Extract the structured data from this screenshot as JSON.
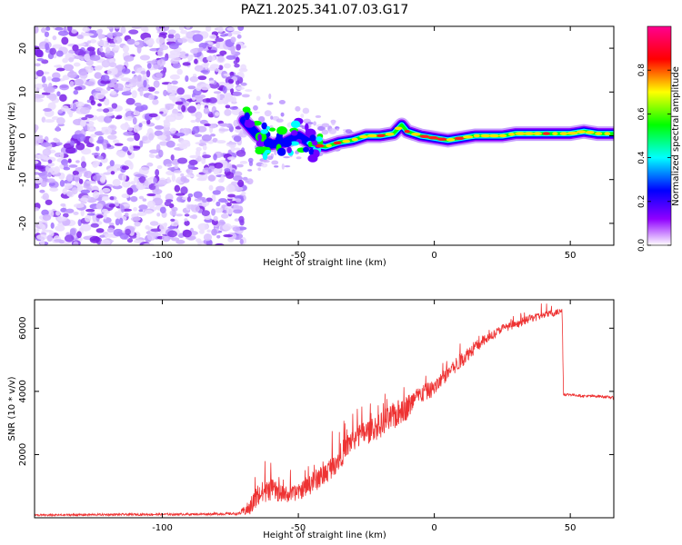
{
  "title": "PAZ1.2025.341.07.03.G17",
  "chart_data": [
    {
      "type": "heatmap",
      "xlabel": "Height of straight line (km)",
      "ylabel": "Frequency (Hz)",
      "xlim": [
        -147,
        66
      ],
      "ylim": [
        -25,
        25
      ],
      "xticks": [
        -100,
        -50,
        0,
        50
      ],
      "yticks": [
        -20,
        -10,
        0,
        10,
        20
      ],
      "noise_region_x": [
        -147,
        -70
      ],
      "colorbar": {
        "label": "Normalized spectral amplitude",
        "range": [
          0,
          1
        ],
        "ticks": [
          0.0,
          0.2,
          0.4,
          0.6,
          0.8
        ],
        "colors": [
          "#ffffff",
          "#9000ff",
          "#0000ff",
          "#00ffff",
          "#00ff00",
          "#ffff00",
          "#ff0000",
          "#ff0090"
        ]
      },
      "ridge": {
        "x": [
          -70,
          -65,
          -60,
          -55,
          -50,
          -45,
          -40,
          -35,
          -30,
          -25,
          -20,
          -15,
          -12,
          -10,
          -5,
          0,
          5,
          10,
          15,
          20,
          25,
          30,
          35,
          40,
          45,
          50,
          55,
          60,
          66
        ],
        "y": [
          3.5,
          0,
          -2,
          -1.5,
          0,
          -2,
          -2.5,
          -1.5,
          -1,
          0,
          0,
          0.5,
          2.5,
          1,
          0,
          -0.5,
          -1,
          -0.5,
          0,
          0,
          0,
          0.5,
          0.5,
          0.5,
          0.5,
          0.5,
          1,
          0.5,
          0.5
        ]
      }
    },
    {
      "type": "line",
      "xlabel": "Height of straight line (km)",
      "ylabel": "SNR (10 * v/v)",
      "xlim": [
        -147,
        66
      ],
      "ylim": [
        0,
        6900
      ],
      "xticks": [
        -100,
        -50,
        0,
        50
      ],
      "yticks": [
        2000,
        4000,
        6000
      ],
      "series": [
        {
          "name": "SNR",
          "color": "#ee3333",
          "x": [
            -147,
            -120,
            -90,
            -72,
            -68,
            -65,
            -60,
            -55,
            -50,
            -45,
            -40,
            -35,
            -30,
            -25,
            -20,
            -15,
            -10,
            -5,
            0,
            5,
            10,
            15,
            20,
            25,
            30,
            35,
            40,
            45,
            47,
            47.5,
            50,
            55,
            60,
            66
          ],
          "base": [
            80,
            100,
            110,
            130,
            300,
            700,
            900,
            700,
            800,
            1100,
            1400,
            1900,
            2500,
            2700,
            2900,
            3200,
            3500,
            3900,
            4100,
            4600,
            5000,
            5400,
            5700,
            6000,
            6100,
            6300,
            6400,
            6500,
            6550,
            3900,
            3900,
            3850,
            3850,
            3800
          ],
          "spread": [
            60,
            70,
            70,
            80,
            500,
            800,
            700,
            500,
            500,
            700,
            700,
            800,
            800,
            800,
            800,
            900,
            800,
            600,
            500,
            500,
            500,
            400,
            300,
            250,
            250,
            250,
            250,
            200,
            200,
            80,
            80,
            80,
            80,
            80
          ]
        }
      ]
    }
  ]
}
